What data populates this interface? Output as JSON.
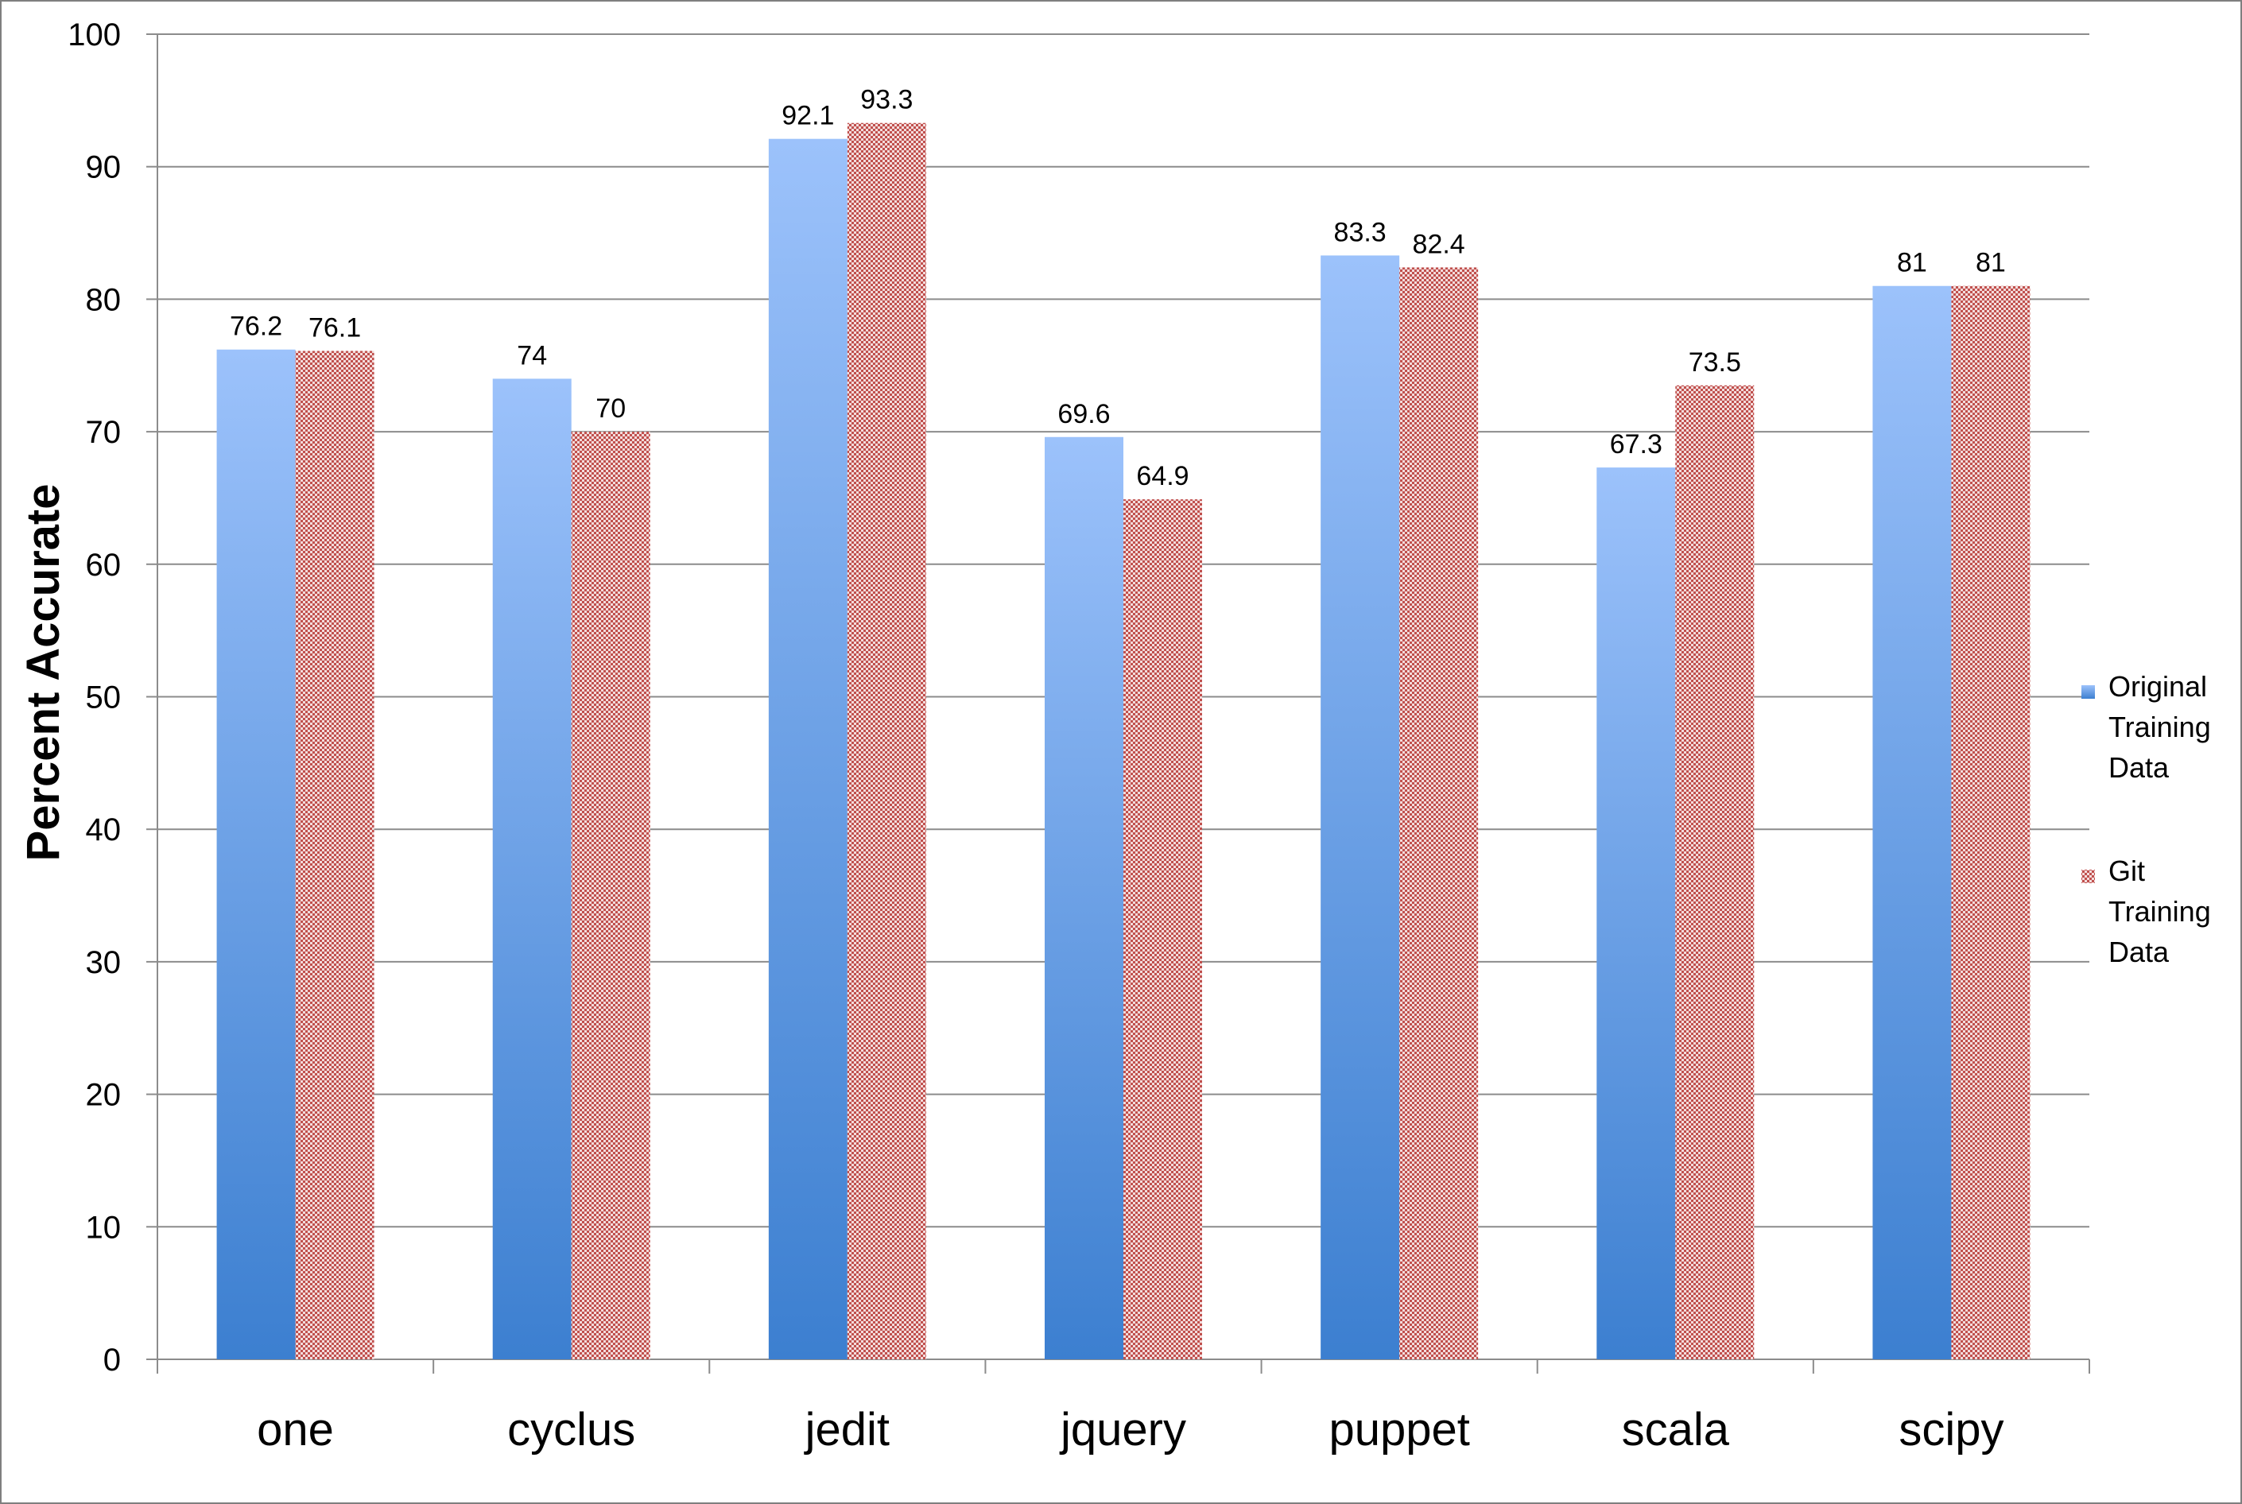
{
  "chart_data": {
    "type": "bar",
    "ylabel": "Percent Accurate",
    "categories": [
      "one",
      "cyclus",
      "jedit",
      "jquery",
      "puppet",
      "scala",
      "scipy"
    ],
    "series": [
      {
        "name": "Original Training Data",
        "values": [
          76.2,
          74,
          92.1,
          69.6,
          83.3,
          67.3,
          81
        ],
        "color": "#4a86d6"
      },
      {
        "name": "Git Training Data",
        "values": [
          76.1,
          70,
          93.3,
          64.9,
          82.4,
          73.5,
          81
        ],
        "color": "#c0504d"
      }
    ],
    "series_labels": {
      "0": [
        "Original",
        "Training",
        "Data"
      ],
      "1": [
        "Git",
        "Training",
        "Data"
      ]
    },
    "data_labels": {
      "0": [
        "76.2",
        "74",
        "92.1",
        "69.6",
        "83.3",
        "67.3",
        "81"
      ],
      "1": [
        "76.1",
        "70",
        "93.3",
        "64.9",
        "82.4",
        "73.5",
        "81"
      ]
    },
    "ylim": [
      0,
      100
    ],
    "yticks": [
      "0",
      "10",
      "20",
      "30",
      "40",
      "50",
      "60",
      "70",
      "80",
      "90",
      "100"
    ],
    "grid": true,
    "legend": "right"
  }
}
